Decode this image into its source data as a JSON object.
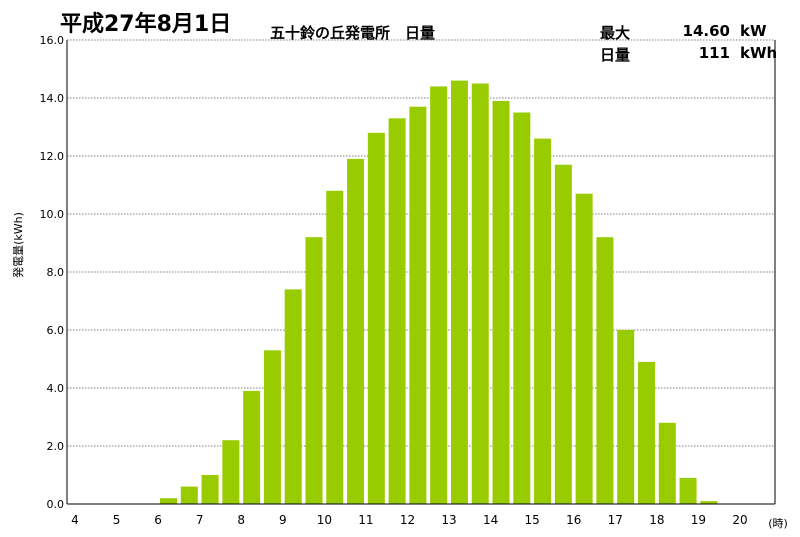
{
  "header": {
    "date_title": "平成27年8月1日",
    "main_title": "五十鈴の丘発電所　日量",
    "max_label": "最大",
    "max_value": "14.60",
    "max_unit": "kW",
    "daily_label": "日量",
    "daily_value": "111",
    "daily_unit": "kWh"
  },
  "chart_data": {
    "type": "bar",
    "title": "五十鈴の丘発電所　日量",
    "ylabel": "発電量(kWh)",
    "xlabel": "(時)",
    "ylim": [
      0,
      16
    ],
    "yticks": [
      "0.0",
      "2.0",
      "4.0",
      "6.0",
      "8.0",
      "10.0",
      "12.0",
      "14.0",
      "16.0"
    ],
    "xticks": [
      "4",
      "5",
      "6",
      "7",
      "8",
      "9",
      "10",
      "11",
      "12",
      "13",
      "14",
      "15",
      "16",
      "17",
      "18",
      "19",
      "20"
    ],
    "xrange": [
      4,
      20
    ],
    "grid": true,
    "bar_color": "#99cc00",
    "x": [
      6.0,
      6.5,
      7.0,
      7.5,
      8.0,
      8.5,
      9.0,
      9.5,
      10.0,
      10.5,
      11.0,
      11.5,
      12.0,
      12.5,
      13.0,
      13.5,
      14.0,
      14.5,
      15.0,
      15.5,
      16.0,
      16.5,
      17.0,
      17.5,
      18.0,
      18.5,
      19.0
    ],
    "values": [
      0.2,
      0.6,
      1.0,
      2.2,
      3.9,
      5.3,
      7.4,
      9.2,
      10.8,
      11.9,
      12.8,
      13.3,
      13.7,
      14.4,
      14.6,
      14.5,
      13.9,
      13.5,
      12.6,
      11.7,
      10.7,
      9.2,
      6.0,
      4.9,
      2.8,
      0.9,
      0.1
    ]
  }
}
